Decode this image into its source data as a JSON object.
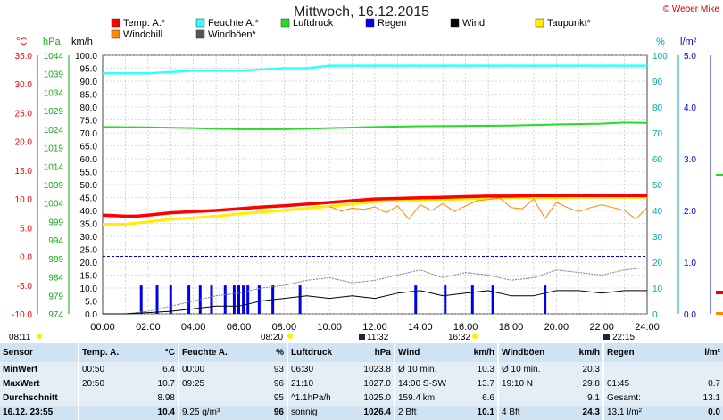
{
  "title": "Mittwoch, 16.12.2015",
  "credit": "© Weber Mike",
  "units": {
    "temp": "°C",
    "hpa": "hPa",
    "kmh": "km/h",
    "pct": "%",
    "rain": "l/m²"
  },
  "legend": [
    {
      "label": "Temp. A.*",
      "color": "#ff0000"
    },
    {
      "label": "Feuchte A.*",
      "color": "#33ffff"
    },
    {
      "label": "Luftdruck",
      "color": "#22dd22"
    },
    {
      "label": "Regen",
      "color": "#0000ee"
    },
    {
      "label": "Wind",
      "color": "#000000"
    },
    {
      "label": "Taupunkt*",
      "color": "#ffee00"
    },
    {
      "label": "Windchill",
      "color": "#ff8800"
    },
    {
      "label": "Windböen*",
      "color": "#555555"
    }
  ],
  "axes": {
    "temp": [
      "35.0",
      "30.0",
      "25.0",
      "20.0",
      "15.0",
      "10.0",
      "5.0",
      "0.0",
      "-5.0",
      "-10.0"
    ],
    "hpa": [
      "1044",
      "1039",
      "1034",
      "1029",
      "1024",
      "1019",
      "1014",
      "1009",
      "1004",
      "999",
      "994",
      "989",
      "984",
      "979",
      "974"
    ],
    "kmh": [
      "100.0",
      "95.0",
      "90.0",
      "85.0",
      "80.0",
      "75.0",
      "70.0",
      "65.0",
      "60.0",
      "55.0",
      "50.0",
      "45.0",
      "40.0",
      "35.0",
      "30.0",
      "25.0",
      "20.0",
      "15.0",
      "10.0",
      "5.0",
      "0.0"
    ],
    "pct": [
      "100",
      "90",
      "80",
      "70",
      "60",
      "50",
      "40",
      "30",
      "20",
      "10",
      "0"
    ],
    "rain": [
      "5.0",
      "4.0",
      "3.0",
      "2.0",
      "1.0",
      "0.0"
    ],
    "time": [
      "00:00",
      "02:00",
      "04:00",
      "06:00",
      "08:00",
      "10:00",
      "12:00",
      "14:00",
      "16:00",
      "18:00",
      "20:00",
      "22:00",
      "24:00"
    ]
  },
  "sun": {
    "sunrise": "08:11",
    "noon": "11:32",
    "sunset": "16:32",
    "moonset": "22:15",
    "rise2": "08:20"
  },
  "chart_data": {
    "type": "line",
    "x_unit": "hours",
    "series": [
      {
        "name": "Temp. A.*",
        "axis": "temp",
        "x": [
          0,
          1,
          1.5,
          2,
          3,
          4,
          5,
          6,
          7,
          8,
          9,
          10,
          11,
          12,
          13,
          14,
          15,
          16,
          17,
          18,
          19,
          20,
          21,
          22,
          23,
          24
        ],
        "values": [
          7.2,
          7.0,
          7.0,
          7.2,
          7.6,
          7.8,
          8.0,
          8.3,
          8.6,
          8.8,
          9.1,
          9.4,
          9.7,
          10.0,
          10.1,
          10.2,
          10.3,
          10.4,
          10.5,
          10.5,
          10.6,
          10.6,
          10.6,
          10.6,
          10.6,
          10.6
        ]
      },
      {
        "name": "Taupunkt*",
        "axis": "temp",
        "x": [
          0,
          1,
          2,
          3,
          4,
          5,
          6,
          7,
          8,
          9,
          10,
          11,
          12,
          13,
          14,
          15,
          16,
          17,
          18,
          19,
          20,
          21,
          22,
          23,
          24
        ],
        "values": [
          5.6,
          5.6,
          6.0,
          6.5,
          6.7,
          7.0,
          7.4,
          7.7,
          8.0,
          8.4,
          8.7,
          9.1,
          9.5,
          9.7,
          9.8,
          9.9,
          10.0,
          10.1,
          10.2,
          10.2,
          10.2,
          10.3,
          10.3,
          10.3,
          10.3
        ]
      },
      {
        "name": "Windchill",
        "axis": "temp",
        "x": [
          10,
          10.5,
          11,
          11.5,
          12,
          12.5,
          13,
          13.5,
          14,
          14.5,
          15,
          15.5,
          16,
          16.5,
          17,
          17.5,
          18,
          18.5,
          19,
          19.5,
          20,
          20.5,
          21,
          21.5,
          22,
          22.5,
          23,
          23.5,
          24
        ],
        "values": [
          8.7,
          7.9,
          8.4,
          8.2,
          8.6,
          7.6,
          8.8,
          6.5,
          9.0,
          8.0,
          9.2,
          7.8,
          8.8,
          9.7,
          9.9,
          10.2,
          8.5,
          8.3,
          10.0,
          6.6,
          9.4,
          8.5,
          7.8,
          8.5,
          9.0,
          8.5,
          8.0,
          6.5,
          8.5
        ]
      },
      {
        "name": "Feuchte A.*",
        "axis": "pct",
        "x": [
          0,
          2,
          4,
          6,
          8,
          9,
          10,
          12,
          14,
          16,
          18,
          20,
          22,
          24
        ],
        "values": [
          93,
          93,
          94,
          94,
          95,
          95,
          96,
          96,
          96,
          96,
          96,
          96,
          96,
          96
        ]
      },
      {
        "name": "Luftdruck",
        "axis": "hpa",
        "x": [
          0,
          2,
          4,
          6,
          8,
          10,
          12,
          14,
          16,
          18,
          20,
          22,
          23,
          24
        ],
        "values": [
          1024.6,
          1024.5,
          1024.3,
          1024.0,
          1024.0,
          1024.3,
          1024.6,
          1024.8,
          1024.9,
          1025.0,
          1025.3,
          1025.5,
          1025.8,
          1025.7
        ]
      },
      {
        "name": "Wind",
        "axis": "kmh",
        "x": [
          0,
          1,
          2,
          3,
          4,
          5,
          6,
          7,
          8,
          9,
          10,
          11,
          12,
          13,
          14,
          15,
          16,
          17,
          18,
          19,
          20,
          21,
          22,
          23,
          24
        ],
        "values": [
          0,
          0,
          0.5,
          1,
          2,
          3,
          3,
          5,
          6,
          7,
          6,
          7,
          6,
          8,
          9,
          7,
          8,
          9,
          7,
          7,
          9,
          9,
          8,
          9,
          9
        ]
      },
      {
        "name": "Windböen*",
        "axis": "kmh",
        "x": [
          0,
          1,
          2,
          3,
          4,
          5,
          6,
          7,
          8,
          9,
          10,
          11,
          12,
          13,
          14,
          15,
          16,
          17,
          18,
          19,
          20,
          21,
          22,
          23,
          24
        ],
        "values": [
          0,
          0,
          1,
          3,
          5,
          7,
          8,
          10,
          11,
          13,
          14,
          12,
          13,
          15,
          17,
          14,
          16,
          15,
          13,
          14,
          17,
          16,
          15,
          17,
          18
        ]
      }
    ],
    "rain_events": {
      "name": "Regen",
      "axis": "kmh",
      "x": [
        1.7,
        2.4,
        3.0,
        3.8,
        4.3,
        4.8,
        5.4,
        5.8,
        6.0,
        6.2,
        6.4,
        6.9,
        7.5,
        8.7,
        13.8,
        15.1,
        16.3,
        17.2,
        19.5
      ],
      "values": [
        11,
        11,
        11,
        11,
        11,
        11,
        11,
        11,
        11,
        11,
        11,
        11,
        11,
        11,
        11,
        11,
        11,
        11,
        11
      ]
    },
    "ylim_temp": [
      -10,
      35
    ],
    "ylim_hpa": [
      974,
      1044
    ],
    "ylim_kmh": [
      0,
      100
    ],
    "ylim_pct": [
      0,
      100
    ],
    "ylim_rain": [
      0,
      5
    ],
    "xlim": [
      0,
      24
    ]
  },
  "table": {
    "headers": [
      "Sensor",
      "Temp. A.",
      "°C",
      "Feuchte A.",
      "%",
      "Luftdruck",
      "hPa",
      "Wind",
      "km/h",
      "Windböen",
      "km/h",
      "Regen",
      "l/m²"
    ],
    "rows": [
      [
        "MinWert",
        "00:50",
        "6.4",
        "00:00",
        "93",
        "06:30",
        "1023.8",
        "Ø 10 min.",
        "10.3",
        "Ø 10 min.",
        "20.3",
        "",
        ""
      ],
      [
        "MaxWert",
        "20:50",
        "10.7",
        "09:25",
        "96",
        "21:10",
        "1027.0",
        "14:00   S-SW",
        "13.7",
        "19:10   N",
        "29.8",
        "01:45",
        "0.7"
      ],
      [
        "Durchschnitt",
        "",
        "8.98",
        "",
        "95",
        "^1.1hPa/h",
        "1025.0",
        "159.4 km",
        "6.6",
        "",
        "9.1",
        "Gesamt:",
        "13.1"
      ]
    ],
    "footer": [
      "16.12. 23:55",
      "",
      "10.4",
      "9.25 g/m³",
      "96",
      "sonnig",
      "1026.4",
      "2 Bft",
      "10.1",
      "4 Bft",
      "24.3",
      "13.1 l/m²",
      "0.0"
    ]
  }
}
